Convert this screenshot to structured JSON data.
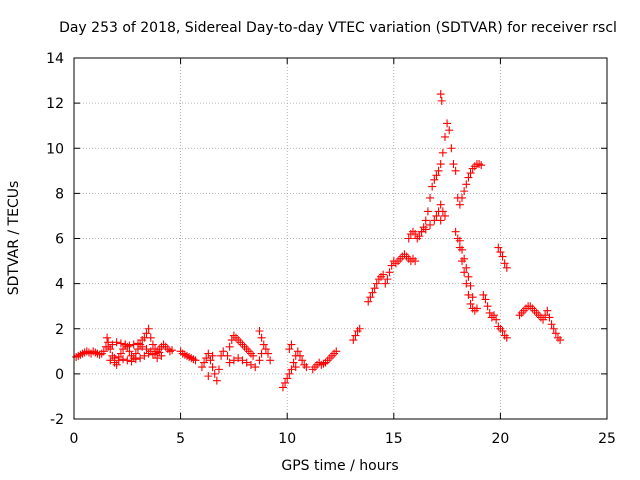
{
  "chart_data": {
    "type": "scatter",
    "title": "Day 253 of 2018, Sidereal Day-to-day VTEC variation (SDTVAR) for receiver rscl",
    "xlabel": "GPS time / hours",
    "ylabel": "SDTVAR / TECUs",
    "xlim": [
      0,
      25
    ],
    "ylim": [
      -2,
      14
    ],
    "xticks": [
      0,
      5,
      10,
      15,
      20,
      25
    ],
    "yticks": [
      -2,
      0,
      2,
      4,
      6,
      8,
      10,
      12,
      14
    ],
    "grid": true,
    "marker": "+",
    "color": "#ff0000",
    "series": [
      {
        "name": "SDTVAR",
        "points": [
          [
            0.1,
            0.75
          ],
          [
            0.2,
            0.8
          ],
          [
            0.3,
            0.85
          ],
          [
            0.4,
            0.9
          ],
          [
            0.5,
            0.95
          ],
          [
            0.6,
            1.0
          ],
          [
            0.7,
            0.95
          ],
          [
            0.8,
            0.9
          ],
          [
            0.9,
            1.0
          ],
          [
            1.0,
            0.95
          ],
          [
            1.1,
            0.9
          ],
          [
            1.2,
            0.85
          ],
          [
            1.3,
            0.9
          ],
          [
            1.4,
            1.0
          ],
          [
            1.5,
            1.2
          ],
          [
            1.55,
            1.6
          ],
          [
            1.6,
            1.4
          ],
          [
            1.7,
            1.1
          ],
          [
            1.8,
            0.8
          ],
          [
            1.9,
            0.5
          ],
          [
            2.0,
            0.4
          ],
          [
            2.1,
            0.6
          ],
          [
            2.2,
            0.9
          ],
          [
            2.3,
            1.1
          ],
          [
            2.4,
            1.3
          ],
          [
            2.5,
            1.2
          ],
          [
            2.6,
            1.0
          ],
          [
            2.7,
            0.8
          ],
          [
            2.8,
            0.7
          ],
          [
            2.9,
            0.9
          ],
          [
            3.0,
            1.1
          ],
          [
            3.1,
            1.3
          ],
          [
            3.2,
            1.5
          ],
          [
            3.3,
            1.6
          ],
          [
            3.4,
            1.8
          ],
          [
            3.5,
            2.0
          ],
          [
            3.6,
            1.6
          ],
          [
            3.7,
            1.3
          ],
          [
            3.8,
            1.1
          ],
          [
            3.9,
            1.0
          ],
          [
            4.0,
            1.1
          ],
          [
            4.1,
            1.2
          ],
          [
            4.2,
            1.3
          ],
          [
            4.3,
            1.2
          ],
          [
            4.4,
            1.1
          ],
          [
            4.5,
            1.0
          ],
          [
            4.6,
            1.05
          ],
          [
            1.6,
            1.2
          ],
          [
            1.8,
            1.3
          ],
          [
            2.0,
            1.4
          ],
          [
            2.2,
            1.35
          ],
          [
            2.4,
            1.3
          ],
          [
            2.6,
            1.25
          ],
          [
            2.8,
            1.3
          ],
          [
            3.0,
            1.35
          ],
          [
            3.2,
            1.2
          ],
          [
            3.4,
            1.1
          ],
          [
            3.6,
            1.0
          ],
          [
            3.8,
            0.9
          ],
          [
            4.0,
            0.95
          ],
          [
            1.7,
            0.6
          ],
          [
            1.9,
            0.7
          ],
          [
            2.1,
            0.75
          ],
          [
            2.3,
            0.65
          ],
          [
            2.5,
            0.6
          ],
          [
            2.7,
            0.55
          ],
          [
            2.9,
            0.65
          ],
          [
            3.1,
            0.7
          ],
          [
            3.3,
            0.8
          ],
          [
            3.5,
            0.9
          ],
          [
            3.7,
            0.85
          ],
          [
            3.9,
            0.7
          ],
          [
            4.1,
            0.8
          ],
          [
            5.0,
            1.0
          ],
          [
            5.1,
            0.9
          ],
          [
            5.2,
            0.85
          ],
          [
            5.3,
            0.8
          ],
          [
            5.4,
            0.75
          ],
          [
            5.5,
            0.7
          ],
          [
            5.6,
            0.65
          ],
          [
            5.7,
            0.6
          ],
          [
            6.0,
            0.3
          ],
          [
            6.1,
            0.5
          ],
          [
            6.2,
            0.7
          ],
          [
            6.3,
            0.9
          ],
          [
            6.4,
            0.6
          ],
          [
            6.5,
            0.3
          ],
          [
            6.6,
            0.0
          ],
          [
            6.7,
            -0.3
          ],
          [
            6.8,
            0.2
          ],
          [
            6.9,
            0.8
          ],
          [
            7.0,
            1.0
          ],
          [
            6.3,
            -0.1
          ],
          [
            6.5,
            0.8
          ],
          [
            7.2,
            0.8
          ],
          [
            7.3,
            1.2
          ],
          [
            7.4,
            1.5
          ],
          [
            7.5,
            1.7
          ],
          [
            7.6,
            1.6
          ],
          [
            7.7,
            1.5
          ],
          [
            7.8,
            1.4
          ],
          [
            7.9,
            1.3
          ],
          [
            8.0,
            1.2
          ],
          [
            8.1,
            1.1
          ],
          [
            8.2,
            1.0
          ],
          [
            8.3,
            0.9
          ],
          [
            8.4,
            0.8
          ],
          [
            7.3,
            0.5
          ],
          [
            7.5,
            0.6
          ],
          [
            7.7,
            0.7
          ],
          [
            7.9,
            0.6
          ],
          [
            8.1,
            0.5
          ],
          [
            8.3,
            0.4
          ],
          [
            8.5,
            0.3
          ],
          [
            8.7,
            0.6
          ],
          [
            8.8,
            0.9
          ],
          [
            8.7,
            1.9
          ],
          [
            8.8,
            1.6
          ],
          [
            8.9,
            1.3
          ],
          [
            9.0,
            1.1
          ],
          [
            9.1,
            0.9
          ],
          [
            9.2,
            0.6
          ],
          [
            9.8,
            -0.6
          ],
          [
            9.9,
            -0.4
          ],
          [
            10.0,
            -0.2
          ],
          [
            10.1,
            0.0
          ],
          [
            10.2,
            0.2
          ],
          [
            10.3,
            0.5
          ],
          [
            10.4,
            0.8
          ],
          [
            10.5,
            1.0
          ],
          [
            10.6,
            0.8
          ],
          [
            10.7,
            0.6
          ],
          [
            10.8,
            0.4
          ],
          [
            10.9,
            0.3
          ],
          [
            10.1,
            1.1
          ],
          [
            10.2,
            1.3
          ],
          [
            10.4,
            0.3
          ],
          [
            11.2,
            0.2
          ],
          [
            11.3,
            0.3
          ],
          [
            11.4,
            0.4
          ],
          [
            11.5,
            0.5
          ],
          [
            11.6,
            0.4
          ],
          [
            11.7,
            0.45
          ],
          [
            11.8,
            0.5
          ],
          [
            11.9,
            0.6
          ],
          [
            12.0,
            0.7
          ],
          [
            12.1,
            0.8
          ],
          [
            12.2,
            0.9
          ],
          [
            12.3,
            1.0
          ],
          [
            13.1,
            1.5
          ],
          [
            13.2,
            1.7
          ],
          [
            13.3,
            1.9
          ],
          [
            13.4,
            2.0
          ],
          [
            13.8,
            3.2
          ],
          [
            13.9,
            3.4
          ],
          [
            14.0,
            3.6
          ],
          [
            14.1,
            3.8
          ],
          [
            14.2,
            4.0
          ],
          [
            14.3,
            4.2
          ],
          [
            14.4,
            4.3
          ],
          [
            14.5,
            4.4
          ],
          [
            14.6,
            4.0
          ],
          [
            14.7,
            4.2
          ],
          [
            14.8,
            4.5
          ],
          [
            14.9,
            4.8
          ],
          [
            15.0,
            5.0
          ],
          [
            15.1,
            4.9
          ],
          [
            15.2,
            5.0
          ],
          [
            15.3,
            5.1
          ],
          [
            15.4,
            5.2
          ],
          [
            15.5,
            5.3
          ],
          [
            15.6,
            5.2
          ],
          [
            15.7,
            5.1
          ],
          [
            15.8,
            5.0
          ],
          [
            15.9,
            5.1
          ],
          [
            16.0,
            5.0
          ],
          [
            15.7,
            6.0
          ],
          [
            15.8,
            6.2
          ],
          [
            15.9,
            6.3
          ],
          [
            16.0,
            6.2
          ],
          [
            16.1,
            6.0
          ],
          [
            16.2,
            6.1
          ],
          [
            16.3,
            6.3
          ],
          [
            16.4,
            6.5
          ],
          [
            16.5,
            6.8
          ],
          [
            16.6,
            7.2
          ],
          [
            16.7,
            7.8
          ],
          [
            16.8,
            8.3
          ],
          [
            16.9,
            8.6
          ],
          [
            17.0,
            8.8
          ],
          [
            17.1,
            9.0
          ],
          [
            17.2,
            9.3
          ],
          [
            17.3,
            9.8
          ],
          [
            17.4,
            10.5
          ],
          [
            17.5,
            11.1
          ],
          [
            17.6,
            10.8
          ],
          [
            17.7,
            10.0
          ],
          [
            17.8,
            9.3
          ],
          [
            17.9,
            9.0
          ],
          [
            17.2,
            12.4
          ],
          [
            17.25,
            12.1
          ],
          [
            16.3,
            6.3
          ],
          [
            16.5,
            6.4
          ],
          [
            16.7,
            6.6
          ],
          [
            16.9,
            6.8
          ],
          [
            17.0,
            7.0
          ],
          [
            17.1,
            7.2
          ],
          [
            17.2,
            7.5
          ],
          [
            17.3,
            7.2
          ],
          [
            17.4,
            7.0
          ],
          [
            17.2,
            6.8
          ],
          [
            18.0,
            7.8
          ],
          [
            18.1,
            7.5
          ],
          [
            18.2,
            7.8
          ],
          [
            18.3,
            8.1
          ],
          [
            18.4,
            8.4
          ],
          [
            18.5,
            8.7
          ],
          [
            18.6,
            8.9
          ],
          [
            18.7,
            9.1
          ],
          [
            18.8,
            9.2
          ],
          [
            18.9,
            9.3
          ],
          [
            19.0,
            9.3
          ],
          [
            19.1,
            9.25
          ],
          [
            17.9,
            6.3
          ],
          [
            18.0,
            6.0
          ],
          [
            18.1,
            5.6
          ],
          [
            18.2,
            5.0
          ],
          [
            18.3,
            4.5
          ],
          [
            18.4,
            4.0
          ],
          [
            18.5,
            3.5
          ],
          [
            18.6,
            3.1
          ],
          [
            18.7,
            2.9
          ],
          [
            18.8,
            2.8
          ],
          [
            18.9,
            2.9
          ],
          [
            18.1,
            5.9
          ],
          [
            18.2,
            5.5
          ],
          [
            18.3,
            5.1
          ],
          [
            18.4,
            4.7
          ],
          [
            18.5,
            4.3
          ],
          [
            18.6,
            3.9
          ],
          [
            18.7,
            3.4
          ],
          [
            19.2,
            3.5
          ],
          [
            19.3,
            3.3
          ],
          [
            19.4,
            3.0
          ],
          [
            19.5,
            2.7
          ],
          [
            19.6,
            2.5
          ],
          [
            19.7,
            2.6
          ],
          [
            19.8,
            2.4
          ],
          [
            19.9,
            2.1
          ],
          [
            20.0,
            2.0
          ],
          [
            20.1,
            1.9
          ],
          [
            20.2,
            1.7
          ],
          [
            20.3,
            1.6
          ],
          [
            19.9,
            5.6
          ],
          [
            20.0,
            5.4
          ],
          [
            20.1,
            5.2
          ],
          [
            20.2,
            4.9
          ],
          [
            20.3,
            4.7
          ],
          [
            20.9,
            2.6
          ],
          [
            21.0,
            2.7
          ],
          [
            21.1,
            2.8
          ],
          [
            21.2,
            2.9
          ],
          [
            21.3,
            3.0
          ],
          [
            21.4,
            3.0
          ],
          [
            21.5,
            2.9
          ],
          [
            21.6,
            2.8
          ],
          [
            21.7,
            2.7
          ],
          [
            21.8,
            2.6
          ],
          [
            21.9,
            2.5
          ],
          [
            22.0,
            2.4
          ],
          [
            22.1,
            2.6
          ],
          [
            22.2,
            2.8
          ],
          [
            22.3,
            2.5
          ],
          [
            22.4,
            2.2
          ],
          [
            22.5,
            2.0
          ],
          [
            22.6,
            1.8
          ],
          [
            22.7,
            1.6
          ],
          [
            22.8,
            1.5
          ]
        ]
      }
    ]
  }
}
